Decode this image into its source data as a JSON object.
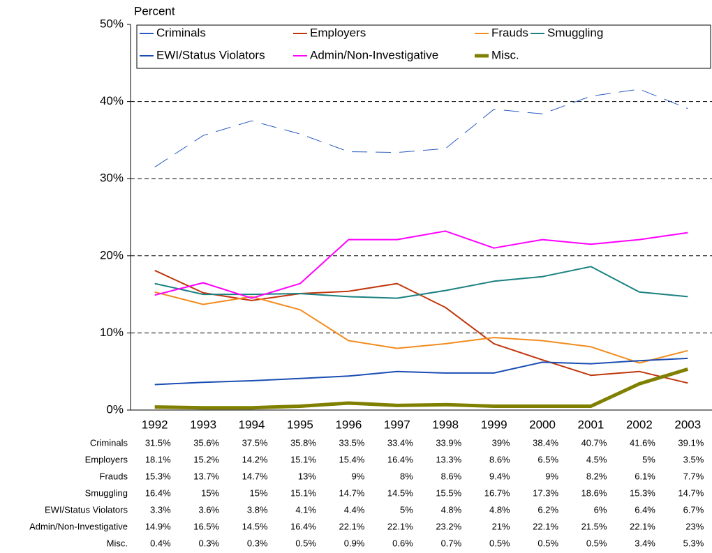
{
  "chart_data": {
    "type": "line",
    "ylabel": "Percent",
    "categories": [
      "1992",
      "1993",
      "1994",
      "1995",
      "1996",
      "1997",
      "1998",
      "1999",
      "2000",
      "2001",
      "2002",
      "2003"
    ],
    "ylim": [
      0,
      50
    ],
    "yticks": [
      {
        "value": 0,
        "label": "0%"
      },
      {
        "value": 10,
        "label": "10%"
      },
      {
        "value": 20,
        "label": "20%"
      },
      {
        "value": 30,
        "label": "30%"
      },
      {
        "value": 40,
        "label": "40%"
      },
      {
        "value": 50,
        "label": "50%"
      }
    ],
    "grid": true,
    "series": [
      {
        "name": "Criminals",
        "color": "#2a5cbf",
        "line_width": 1,
        "dashed": true,
        "values": [
          31.5,
          35.6,
          37.5,
          35.8,
          33.5,
          33.4,
          33.9,
          39,
          38.4,
          40.7,
          41.6,
          39.1
        ],
        "value_labels": [
          "31.5%",
          "35.6%",
          "37.5%",
          "35.8%",
          "33.5%",
          "33.4%",
          "33.9%",
          "39%",
          "38.4%",
          "40.7%",
          "41.6%",
          "39.1%"
        ]
      },
      {
        "name": "Employers",
        "color": "#c0360c",
        "line_width": 2,
        "dashed": false,
        "values": [
          18.1,
          15.2,
          14.2,
          15.1,
          15.4,
          16.4,
          13.3,
          8.6,
          6.5,
          4.5,
          5,
          3.5
        ],
        "value_labels": [
          "18.1%",
          "15.2%",
          "14.2%",
          "15.1%",
          "15.4%",
          "16.4%",
          "13.3%",
          "8.6%",
          "6.5%",
          "4.5%",
          "5%",
          "3.5%"
        ]
      },
      {
        "name": "Frauds",
        "color": "#f28c1e",
        "line_width": 2,
        "dashed": false,
        "values": [
          15.3,
          13.7,
          14.7,
          13,
          9,
          8,
          8.6,
          9.4,
          9,
          8.2,
          6.1,
          7.7
        ],
        "value_labels": [
          "15.3%",
          "13.7%",
          "14.7%",
          "13%",
          "9%",
          "8%",
          "8.6%",
          "9.4%",
          "9%",
          "8.2%",
          "6.1%",
          "7.7%"
        ]
      },
      {
        "name": "Smuggling",
        "color": "#1a8080",
        "line_width": 2,
        "dashed": false,
        "values": [
          16.4,
          15,
          15,
          15.1,
          14.7,
          14.5,
          15.5,
          16.7,
          17.3,
          18.6,
          15.3,
          14.7
        ],
        "value_labels": [
          "16.4%",
          "15%",
          "15%",
          "15.1%",
          "14.7%",
          "14.5%",
          "15.5%",
          "16.7%",
          "17.3%",
          "18.6%",
          "15.3%",
          "14.7%"
        ]
      },
      {
        "name": "EWI/Status Violators",
        "color": "#1a4db3",
        "line_width": 2,
        "dashed": false,
        "values": [
          3.3,
          3.6,
          3.8,
          4.1,
          4.4,
          5,
          4.8,
          4.8,
          6.2,
          6,
          6.4,
          6.7
        ],
        "value_labels": [
          "3.3%",
          "3.6%",
          "3.8%",
          "4.1%",
          "4.4%",
          "5%",
          "4.8%",
          "4.8%",
          "6.2%",
          "6%",
          "6.4%",
          "6.7%"
        ]
      },
      {
        "name": "Admin/Non-Investigative",
        "color": "#ff00ff",
        "line_width": 2,
        "dashed": false,
        "values": [
          14.9,
          16.5,
          14.5,
          16.4,
          22.1,
          22.1,
          23.2,
          21,
          22.1,
          21.5,
          22.1,
          23
        ],
        "value_labels": [
          "14.9%",
          "16.5%",
          "14.5%",
          "16.4%",
          "22.1%",
          "22.1%",
          "23.2%",
          "21%",
          "22.1%",
          "21.5%",
          "22.1%",
          "23%"
        ]
      },
      {
        "name": "Misc.",
        "color": "#808000",
        "line_width": 5,
        "dashed": false,
        "values": [
          0.4,
          0.3,
          0.3,
          0.5,
          0.9,
          0.6,
          0.7,
          0.5,
          0.5,
          0.5,
          3.4,
          5.3
        ],
        "value_labels": [
          "0.4%",
          "0.3%",
          "0.3%",
          "0.5%",
          "0.9%",
          "0.6%",
          "0.7%",
          "0.5%",
          "0.5%",
          "0.5%",
          "3.4%",
          "5.3%"
        ]
      }
    ]
  }
}
